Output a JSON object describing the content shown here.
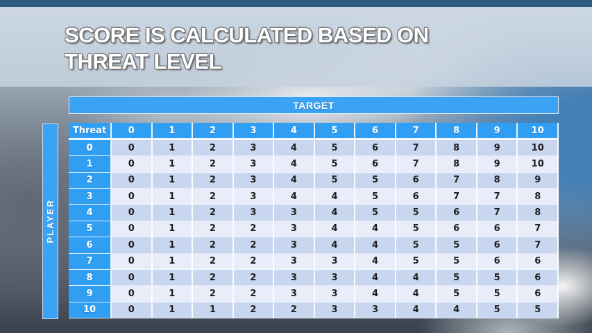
{
  "slide": {
    "title_line1": "SCORE IS CALCULATED BASED ON",
    "title_line2": "THREAT LEVEL"
  },
  "table": {
    "target_label": "TARGET",
    "player_label": "PLAYER",
    "corner_label": "Threat",
    "column_headers": [
      "0",
      "1",
      "2",
      "3",
      "4",
      "5",
      "6",
      "7",
      "8",
      "9",
      "10"
    ],
    "rows": [
      {
        "label": "0",
        "values": [
          "0",
          "1",
          "2",
          "3",
          "4",
          "5",
          "6",
          "7",
          "8",
          "9",
          "10"
        ]
      },
      {
        "label": "1",
        "values": [
          "0",
          "1",
          "2",
          "3",
          "4",
          "5",
          "6",
          "7",
          "8",
          "9",
          "10"
        ]
      },
      {
        "label": "2",
        "values": [
          "0",
          "1",
          "2",
          "3",
          "4",
          "5",
          "5",
          "6",
          "7",
          "8",
          "9"
        ]
      },
      {
        "label": "3",
        "values": [
          "0",
          "1",
          "2",
          "3",
          "4",
          "4",
          "5",
          "6",
          "7",
          "7",
          "8"
        ]
      },
      {
        "label": "4",
        "values": [
          "0",
          "1",
          "2",
          "3",
          "3",
          "4",
          "5",
          "5",
          "6",
          "7",
          "8"
        ]
      },
      {
        "label": "5",
        "values": [
          "0",
          "1",
          "2",
          "2",
          "3",
          "4",
          "4",
          "5",
          "6",
          "6",
          "7"
        ]
      },
      {
        "label": "6",
        "values": [
          "0",
          "1",
          "2",
          "2",
          "3",
          "4",
          "4",
          "5",
          "5",
          "6",
          "7"
        ]
      },
      {
        "label": "7",
        "values": [
          "0",
          "1",
          "2",
          "2",
          "3",
          "3",
          "4",
          "5",
          "5",
          "6",
          "6"
        ]
      },
      {
        "label": "8",
        "values": [
          "0",
          "1",
          "2",
          "2",
          "3",
          "3",
          "4",
          "4",
          "5",
          "5",
          "6"
        ]
      },
      {
        "label": "9",
        "values": [
          "0",
          "1",
          "2",
          "2",
          "3",
          "3",
          "4",
          "4",
          "5",
          "5",
          "6"
        ]
      },
      {
        "label": "10",
        "values": [
          "0",
          "1",
          "1",
          "2",
          "2",
          "3",
          "3",
          "4",
          "4",
          "5",
          "5"
        ]
      }
    ]
  },
  "colors": {
    "header_blue": "#2F9EF3",
    "target_bar_blue": "#3BA3F4",
    "row_dark": "#C9D6F0",
    "row_light": "#E9EDF9",
    "top_strip": "#2F5C82",
    "title_band": "#CBD7E4",
    "title_text": "#FFFFFF",
    "cell_text": "#1E1E1E"
  }
}
